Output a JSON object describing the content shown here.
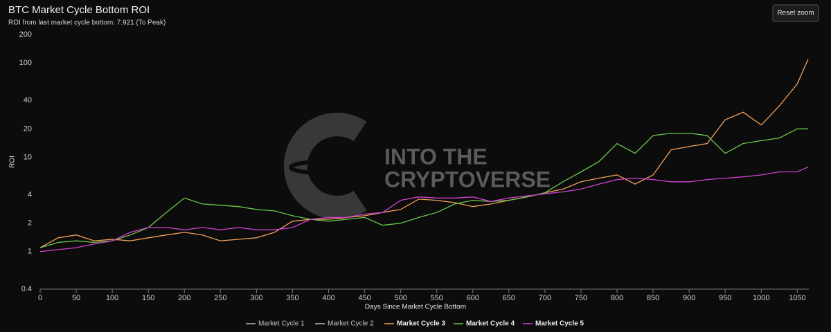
{
  "chart_data": {
    "type": "line",
    "title": "BTC Market Cycle Bottom ROI",
    "subtitle": "ROI from last market cycle bottom: 7.921 (To Peak)",
    "button": "Reset zoom",
    "watermark": [
      "INTO THE",
      "CRYPTOVERSE"
    ],
    "x_label": "Days Since Market Cycle Bottom",
    "y_label": "ROI",
    "log_y": true,
    "xlim": [
      0,
      1066
    ],
    "ylim": [
      0.4,
      200
    ],
    "xticks": [
      0,
      50,
      100,
      150,
      200,
      250,
      300,
      350,
      400,
      450,
      500,
      550,
      600,
      650,
      700,
      750,
      800,
      850,
      900,
      950,
      1000,
      1050
    ],
    "yticks": [
      0.4,
      1,
      2,
      4,
      10,
      20,
      40,
      100,
      200
    ],
    "x": [
      0,
      25,
      50,
      75,
      100,
      125,
      150,
      175,
      200,
      225,
      250,
      275,
      300,
      325,
      350,
      375,
      400,
      425,
      450,
      475,
      500,
      525,
      550,
      575,
      600,
      625,
      650,
      675,
      700,
      725,
      750,
      775,
      800,
      825,
      850,
      875,
      900,
      925,
      950,
      975,
      1000,
      1025,
      1050,
      1065
    ],
    "series": [
      {
        "name": "Market Cycle 1",
        "color": "#cccccc",
        "visible": false,
        "values": [
          null,
          null,
          null,
          null,
          null,
          null,
          null,
          null,
          null,
          null,
          null,
          null,
          null,
          null,
          null,
          null,
          null,
          null,
          null,
          null,
          null,
          null,
          null,
          null,
          null,
          null,
          null,
          null,
          null,
          null,
          null,
          null,
          null,
          null,
          null,
          null,
          null,
          null,
          null,
          null,
          null,
          null,
          null,
          null
        ]
      },
      {
        "name": "Market Cycle 2",
        "color": "#999999",
        "visible": false,
        "values": [
          null,
          null,
          null,
          null,
          null,
          null,
          null,
          null,
          null,
          null,
          null,
          null,
          null,
          null,
          null,
          null,
          null,
          null,
          null,
          null,
          null,
          null,
          null,
          null,
          null,
          null,
          null,
          null,
          null,
          null,
          null,
          null,
          null,
          null,
          null,
          null,
          null,
          null,
          null,
          null,
          null,
          null,
          null,
          null
        ]
      },
      {
        "name": "Market Cycle 3",
        "color": "#f2a05a",
        "visible": true,
        "values": [
          1.1,
          1.4,
          1.5,
          1.3,
          1.35,
          1.3,
          1.4,
          1.5,
          1.6,
          1.5,
          1.3,
          1.35,
          1.4,
          1.6,
          2.1,
          2.2,
          2.2,
          2.3,
          2.4,
          2.6,
          2.8,
          3.6,
          3.5,
          3.3,
          3.0,
          3.2,
          3.5,
          3.8,
          4.2,
          4.6,
          5.5,
          6,
          6.5,
          5.2,
          6.5,
          12,
          13,
          14,
          25,
          30,
          22,
          35,
          60,
          110
        ]
      },
      {
        "name": "Market Cycle 4",
        "color": "#6cc94a",
        "visible": true,
        "values": [
          1.1,
          1.25,
          1.3,
          1.25,
          1.3,
          1.5,
          1.8,
          2.6,
          3.7,
          3.2,
          3.1,
          3.0,
          2.8,
          2.7,
          2.4,
          2.2,
          2.1,
          2.2,
          2.3,
          1.9,
          2.0,
          2.3,
          2.6,
          3.2,
          3.5,
          3.4,
          3.5,
          3.8,
          4.2,
          5.5,
          7,
          9,
          14,
          11,
          17,
          18,
          18,
          17,
          11,
          14,
          15,
          16,
          20,
          20
        ]
      },
      {
        "name": "Market Cycle 5",
        "color": "#d23fd2",
        "visible": true,
        "values": [
          1.0,
          1.05,
          1.1,
          1.2,
          1.3,
          1.6,
          1.8,
          1.8,
          1.7,
          1.8,
          1.7,
          1.8,
          1.7,
          1.7,
          1.8,
          2.2,
          2.3,
          2.3,
          2.5,
          2.6,
          3.5,
          3.8,
          3.7,
          3.7,
          3.8,
          3.4,
          3.7,
          3.9,
          4.1,
          4.3,
          4.6,
          5.2,
          5.8,
          6.0,
          5.8,
          5.5,
          5.5,
          5.8,
          6.0,
          6.2,
          6.5,
          7.0,
          7.0,
          7.9
        ]
      }
    ]
  }
}
